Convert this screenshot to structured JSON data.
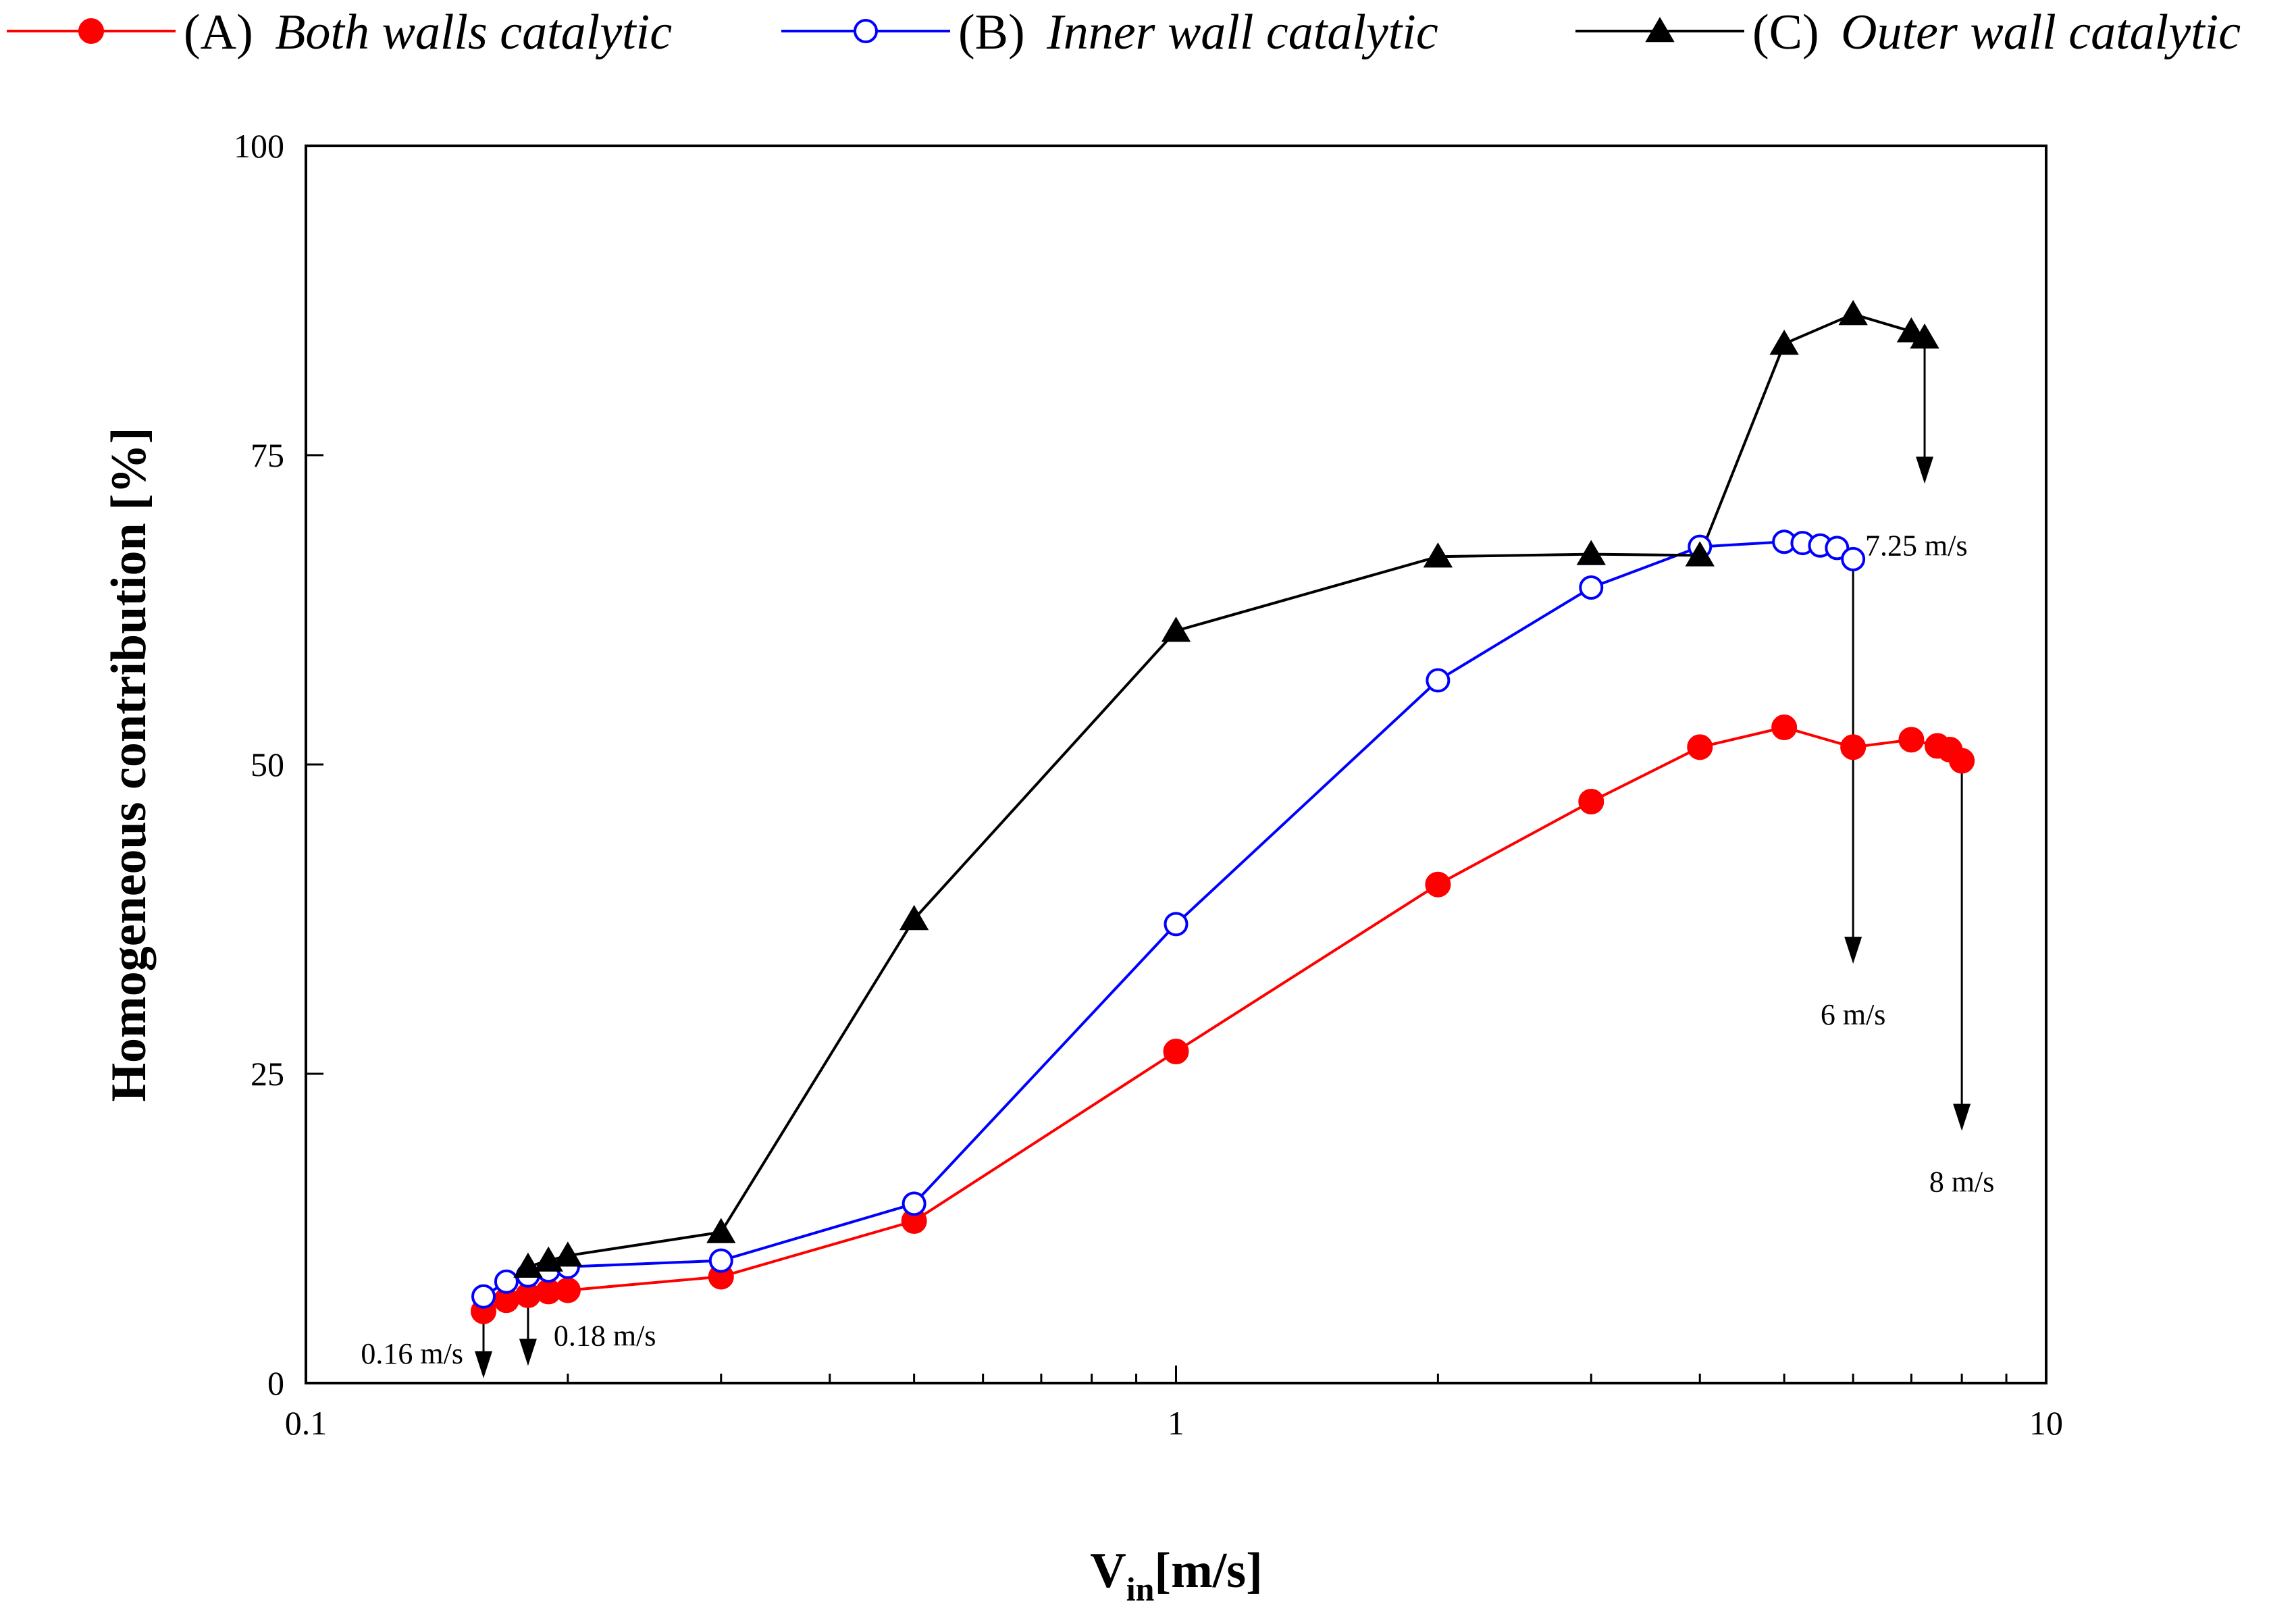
{
  "chart_data": {
    "type": "line",
    "title": "",
    "xlabel": "V",
    "xlabel_sub": "in",
    "xlabel_unit": "[m/s]",
    "ylabel": "Homogeneous contribution [%]",
    "xscale": "log",
    "xlim": [
      0.1,
      10
    ],
    "ylim": [
      0,
      100
    ],
    "xticks": [
      {
        "v": 0.1,
        "label": "0.1"
      },
      {
        "v": 1,
        "label": "1"
      },
      {
        "v": 10,
        "label": "10"
      }
    ],
    "yticks": [
      {
        "v": 0,
        "label": "0"
      },
      {
        "v": 25,
        "label": "25"
      },
      {
        "v": 50,
        "label": "50"
      },
      {
        "v": 75,
        "label": "75"
      },
      {
        "v": 100,
        "label": "100"
      }
    ],
    "legend_position": "top",
    "series": [
      {
        "name": "A",
        "label_prefix": "(A) ",
        "label_italic": "Both walls catalytic",
        "color": "#ff0000",
        "marker": "filled-circle",
        "x": [
          0.16,
          0.17,
          0.18,
          0.19,
          0.2,
          0.3,
          0.5,
          1,
          2,
          3,
          4,
          5,
          6,
          7,
          7.5,
          7.75,
          8
        ],
        "y": [
          5.8,
          6.7,
          7.1,
          7.4,
          7.5,
          8.6,
          13.1,
          26.8,
          40.3,
          47.0,
          51.4,
          53.0,
          51.4,
          52.0,
          51.5,
          51.2,
          50.3
        ]
      },
      {
        "name": "B",
        "label_prefix": "(B) ",
        "label_italic": "Inner wall catalytic",
        "color": "#0000ff",
        "marker": "open-circle",
        "x": [
          0.16,
          0.17,
          0.18,
          0.19,
          0.2,
          0.3,
          0.5,
          1,
          2,
          3,
          4,
          5,
          5.25,
          5.5,
          5.75,
          6
        ],
        "y": [
          7.0,
          8.2,
          8.7,
          9.1,
          9.4,
          9.9,
          14.5,
          37.1,
          56.8,
          64.3,
          67.6,
          68.0,
          67.9,
          67.7,
          67.5,
          66.6
        ]
      },
      {
        "name": "C",
        "label_prefix": "(C) ",
        "label_italic": "Outer wall catalytic",
        "color": "#000000",
        "marker": "filled-triangle",
        "x": [
          0.18,
          0.19,
          0.2,
          0.3,
          0.5,
          1,
          2,
          3,
          4,
          5,
          6,
          7,
          7.25
        ],
        "y": [
          9.4,
          9.9,
          10.3,
          12.2,
          37.5,
          60.8,
          66.8,
          67.0,
          66.9,
          84.0,
          86.4,
          85.0,
          84.5
        ]
      }
    ],
    "annotations": [
      {
        "text": "0.16  m/s",
        "x": 0.16,
        "y_from": 5.8,
        "y_to": 0.5,
        "label_side": "left"
      },
      {
        "text": "0.18  m/s",
        "x": 0.18,
        "y_from": 7.1,
        "y_to": 1.5,
        "label_side": "right"
      },
      {
        "text": "6 m/s",
        "x": 6,
        "y_from": 66.6,
        "y_to": 34.0,
        "label_side": "below"
      },
      {
        "text": "7.25  m/s",
        "x": 7.25,
        "y_from": 84.5,
        "y_to": 72.8,
        "label_side": "below"
      },
      {
        "text": "8 m/s",
        "x": 8,
        "y_from": 50.3,
        "y_to": 20.5,
        "label_side": "below"
      }
    ]
  }
}
